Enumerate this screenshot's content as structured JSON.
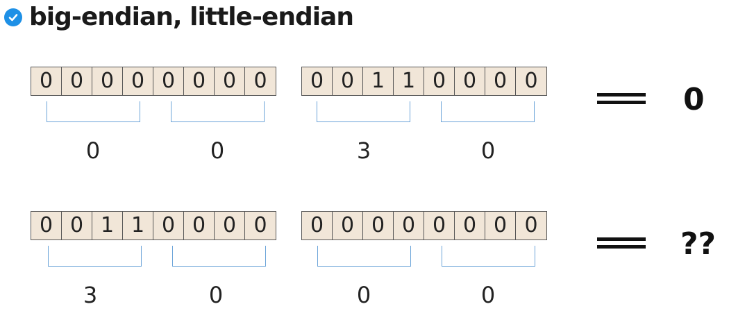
{
  "title": "big-endian, little-endian",
  "rows": [
    {
      "bytes": [
        {
          "bits": [
            "0",
            "0",
            "0",
            "0",
            "0",
            "0",
            "0",
            "0"
          ],
          "value_a": "0",
          "value_b": "0"
        },
        {
          "bits": [
            "0",
            "0",
            "1",
            "1",
            "0",
            "0",
            "0",
            "0"
          ],
          "value_a": "3",
          "value_b": "0"
        }
      ],
      "result": "0"
    },
    {
      "bytes": [
        {
          "bits": [
            "0",
            "0",
            "1",
            "1",
            "0",
            "0",
            "0",
            "0"
          ],
          "value_a": "3",
          "value_b": "0"
        },
        {
          "bits": [
            "0",
            "0",
            "0",
            "0",
            "0",
            "0",
            "0",
            "0"
          ],
          "value_a": "0",
          "value_b": "0"
        }
      ],
      "result": "??"
    }
  ]
}
